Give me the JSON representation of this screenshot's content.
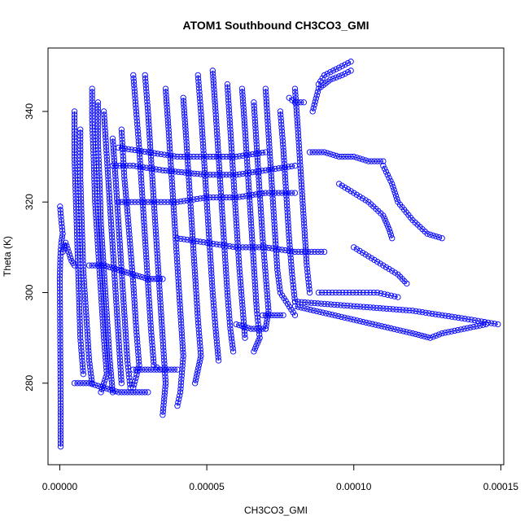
{
  "chart_data": {
    "type": "scatter",
    "title": "ATOM1 Southbound CH3CO3_GMI",
    "xlabel": "CH3CO3_GMI",
    "ylabel": "Theta (K)",
    "xlim": [
      -4e-06,
      0.000151
    ],
    "ylim": [
      262,
      354
    ],
    "x_ticks": [
      0,
      5e-05,
      0.0001,
      0.00015
    ],
    "x_tick_labels": [
      "0.00000",
      "0.00005",
      "0.00010",
      "0.00015"
    ],
    "y_ticks": [
      280,
      300,
      320,
      340
    ],
    "y_tick_labels": [
      "280",
      "300",
      "320",
      "340"
    ],
    "grid": false,
    "legend": "none",
    "series": [
      {
        "marker": "open-circle",
        "color": "#0000ff",
        "mode": "points+lines",
        "tracks": [
          [
            [
              3e-07,
              266
            ],
            [
              3e-07,
              275
            ],
            [
              2e-07,
              285
            ],
            [
              1e-07,
              295
            ],
            [
              0.0,
              303
            ],
            [
              2e-07,
              308
            ],
            [
              5e-07,
              311
            ],
            [
              1e-06,
              313
            ],
            [
              5e-07,
              316
            ],
            [
              1e-07,
              319
            ]
          ],
          [
            [
              1e-06,
              309
            ],
            [
              2e-06,
              311
            ],
            [
              3e-06,
              309
            ],
            [
              4e-06,
              307
            ],
            [
              5e-06,
              306
            ]
          ],
          [
            [
              5e-06,
              340
            ],
            [
              5e-06,
              330
            ],
            [
              5.5e-06,
              320
            ],
            [
              6e-06,
              310
            ],
            [
              6.5e-06,
              300
            ],
            [
              7e-06,
              290
            ],
            [
              8e-06,
              282
            ]
          ],
          [
            [
              7e-06,
              336
            ],
            [
              7e-06,
              325
            ],
            [
              7.5e-06,
              315
            ],
            [
              8e-06,
              305
            ],
            [
              9e-06,
              295
            ],
            [
              1e-05,
              285
            ],
            [
              1.1e-05,
              280
            ]
          ],
          [
            [
              1.1e-05,
              345
            ],
            [
              1.1e-05,
              338
            ],
            [
              1.15e-05,
              330
            ],
            [
              1.2e-05,
              320
            ],
            [
              1.3e-05,
              310
            ],
            [
              1.4e-05,
              300
            ],
            [
              1.5e-05,
              290
            ],
            [
              1.6e-05,
              282
            ],
            [
              1.4e-05,
              278
            ]
          ],
          [
            [
              1.3e-05,
              342
            ],
            [
              1.3e-05,
              333
            ],
            [
              1.35e-05,
              325
            ],
            [
              1.4e-05,
              315
            ],
            [
              1.5e-05,
              305
            ],
            [
              1.6e-05,
              295
            ],
            [
              1.7e-05,
              285
            ],
            [
              1.8e-05,
              278
            ]
          ],
          [
            [
              1.5e-05,
              340
            ],
            [
              1.6e-05,
              330
            ],
            [
              1.7e-05,
              320
            ],
            [
              1.8e-05,
              310
            ],
            [
              1.9e-05,
              300
            ],
            [
              2e-05,
              290
            ],
            [
              2.1e-05,
              280
            ]
          ],
          [
            [
              1.8e-05,
              334
            ],
            [
              1.9e-05,
              325
            ],
            [
              2e-05,
              315
            ],
            [
              2.1e-05,
              305
            ],
            [
              2.2e-05,
              295
            ],
            [
              2.3e-05,
              285
            ],
            [
              2.4e-05,
              279
            ]
          ],
          [
            [
              2.1e-05,
              336
            ],
            [
              2.2e-05,
              325
            ],
            [
              2.3e-05,
              318
            ],
            [
              2.4e-05,
              310
            ],
            [
              2.5e-05,
              302
            ],
            [
              2.6e-05,
              292
            ],
            [
              2.7e-05,
              284
            ],
            [
              2.5e-05,
              279
            ]
          ],
          [
            [
              2.5e-05,
              348
            ],
            [
              2.6e-05,
              340
            ],
            [
              2.7e-05,
              332
            ],
            [
              2.8e-05,
              322
            ],
            [
              2.9e-05,
              312
            ],
            [
              3e-05,
              302
            ],
            [
              3.1e-05,
              292
            ],
            [
              3.2e-05,
              284
            ],
            [
              3.4e-05,
              283
            ]
          ],
          [
            [
              2.9e-05,
              348
            ],
            [
              3e-05,
              340
            ],
            [
              3.1e-05,
              330
            ],
            [
              3.2e-05,
              320
            ],
            [
              3.3e-05,
              310
            ],
            [
              3.4e-05,
              300
            ],
            [
              3.5e-05,
              290
            ],
            [
              3.6e-05,
              280
            ],
            [
              3.5e-05,
              273
            ]
          ],
          [
            [
              3.6e-05,
              345
            ],
            [
              3.7e-05,
              336
            ],
            [
              3.8e-05,
              326
            ],
            [
              3.9e-05,
              316
            ],
            [
              4e-05,
              306
            ],
            [
              4.1e-05,
              296
            ],
            [
              4.2e-05,
              286
            ],
            [
              4.1e-05,
              278
            ],
            [
              4e-05,
              275
            ]
          ],
          [
            [
              4.2e-05,
              343
            ],
            [
              4.3e-05,
              334
            ],
            [
              4.4e-05,
              324
            ],
            [
              4.5e-05,
              314
            ],
            [
              4.6e-05,
              304
            ],
            [
              4.7e-05,
              294
            ],
            [
              4.8e-05,
              286
            ],
            [
              4.6e-05,
              280
            ]
          ],
          [
            [
              4.7e-05,
              348
            ],
            [
              4.8e-05,
              340
            ],
            [
              4.9e-05,
              330
            ],
            [
              5e-05,
              320
            ],
            [
              5.1e-05,
              310
            ],
            [
              5.2e-05,
              300
            ],
            [
              5.3e-05,
              292
            ],
            [
              5.4e-05,
              285
            ]
          ],
          [
            [
              5.2e-05,
              349
            ],
            [
              5.3e-05,
              340
            ],
            [
              5.4e-05,
              330
            ],
            [
              5.5e-05,
              320
            ],
            [
              5.6e-05,
              310
            ],
            [
              5.7e-05,
              300
            ],
            [
              5.8e-05,
              292
            ],
            [
              5.9e-05,
              287
            ]
          ],
          [
            [
              5.7e-05,
              346
            ],
            [
              5.8e-05,
              336
            ],
            [
              5.9e-05,
              326
            ],
            [
              6e-05,
              316
            ],
            [
              6.1e-05,
              306
            ],
            [
              6.2e-05,
              298
            ],
            [
              6.3e-05,
              290
            ]
          ],
          [
            [
              6.2e-05,
              345
            ],
            [
              6.3e-05,
              336
            ],
            [
              6.4e-05,
              326
            ],
            [
              6.5e-05,
              316
            ],
            [
              6.6e-05,
              306
            ],
            [
              6.7e-05,
              296
            ],
            [
              6.8e-05,
              290
            ],
            [
              6.6e-05,
              287
            ]
          ],
          [
            [
              6.6e-05,
              342
            ],
            [
              6.7e-05,
              332
            ],
            [
              6.8e-05,
              322
            ],
            [
              6.9e-05,
              312
            ],
            [
              7e-05,
              304
            ],
            [
              7.1e-05,
              296
            ],
            [
              7e-05,
              292
            ]
          ],
          [
            [
              7e-05,
              345
            ],
            [
              7.1e-05,
              335
            ],
            [
              7.2e-05,
              325
            ],
            [
              7.3e-05,
              315
            ],
            [
              7.4e-05,
              305
            ],
            [
              7.5e-05,
              300
            ],
            [
              8e-05,
              295
            ]
          ],
          [
            [
              7.5e-05,
              340
            ],
            [
              7.6e-05,
              332
            ],
            [
              7.7e-05,
              322
            ],
            [
              7.8e-05,
              312
            ],
            [
              7.9e-05,
              304
            ],
            [
              8e-05,
              298
            ]
          ],
          [
            [
              8e-05,
              345
            ],
            [
              8.1e-05,
              336
            ],
            [
              8.2e-05,
              326
            ],
            [
              8.3e-05,
              316
            ],
            [
              8.4e-05,
              306
            ],
            [
              8.5e-05,
              300
            ]
          ],
          [
            [
              7.8e-05,
              343
            ],
            [
              8e-05,
              342
            ],
            [
              8.3e-05,
              342
            ]
          ],
          [
            [
              8.8e-05,
              346
            ],
            [
              9e-05,
              348
            ],
            [
              9.3e-05,
              349
            ],
            [
              9.6e-05,
              350
            ],
            [
              9.9e-05,
              351
            ]
          ],
          [
            [
              8.6e-05,
              340
            ],
            [
              8.8e-05,
              345
            ],
            [
              9.2e-05,
              347
            ],
            [
              9.6e-05,
              348
            ],
            [
              9.9e-05,
              349
            ]
          ],
          [
            [
              8.5e-05,
              331
            ],
            [
              9e-05,
              331
            ],
            [
              9.5e-05,
              330
            ],
            [
              0.0001,
              330
            ],
            [
              0.000105,
              329
            ],
            [
              0.00011,
              329
            ]
          ],
          [
            [
              9.5e-05,
              324
            ],
            [
              0.0001,
              322
            ],
            [
              0.000105,
              320
            ],
            [
              0.00011,
              317
            ],
            [
              0.000112,
              314
            ],
            [
              0.000113,
              312
            ]
          ],
          [
            [
              0.00011,
              328
            ],
            [
              0.000113,
              324
            ],
            [
              0.000115,
              320
            ],
            [
              0.00012,
              316
            ],
            [
              0.000125,
              313
            ],
            [
              0.00013,
              312
            ]
          ],
          [
            [
              0.0001,
              310
            ],
            [
              0.000105,
              308
            ],
            [
              0.00011,
              306
            ],
            [
              0.000115,
              304
            ],
            [
              0.000118,
              302
            ]
          ],
          [
            [
              8.8e-05,
              300
            ],
            [
              9.5e-05,
              300
            ],
            [
              0.000102,
              300
            ],
            [
              0.000108,
              300
            ],
            [
              0.000115,
              299
            ]
          ],
          [
            [
              8e-05,
              298
            ],
            [
              0.0001,
              297
            ],
            [
              0.00012,
              296
            ],
            [
              0.00014,
              294
            ],
            [
              0.000149,
              293
            ]
          ],
          [
            [
              8e-05,
              297
            ],
            [
              0.0001,
              294
            ],
            [
              0.00012,
              291
            ],
            [
              0.000126,
              290
            ],
            [
              0.00013,
              291
            ],
            [
              0.000145,
              293
            ]
          ],
          [
            [
              6.9e-05,
              295
            ],
            [
              7.3e-05,
              295
            ],
            [
              7.6e-05,
              295
            ]
          ],
          [
            [
              6e-05,
              293
            ],
            [
              6.5e-05,
              292
            ],
            [
              7e-05,
              292
            ]
          ],
          [
            [
              1e-05,
              306
            ],
            [
              1.5e-05,
              306
            ],
            [
              2e-05,
              305
            ],
            [
              2.5e-05,
              304
            ],
            [
              3e-05,
              303
            ],
            [
              3.5e-05,
              303
            ]
          ],
          [
            [
              2e-05,
              320
            ],
            [
              3e-05,
              320
            ],
            [
              4e-05,
              320
            ],
            [
              5e-05,
              321
            ],
            [
              6e-05,
              321
            ],
            [
              7e-05,
              322
            ],
            [
              8e-05,
              322
            ]
          ],
          [
            [
              1.8e-05,
              328
            ],
            [
              2.5e-05,
              328
            ],
            [
              3.5e-05,
              327
            ],
            [
              5e-05,
              326
            ],
            [
              6e-05,
              326
            ],
            [
              7e-05,
              327
            ],
            [
              8e-05,
              328
            ]
          ],
          [
            [
              2e-05,
              332
            ],
            [
              3e-05,
              331
            ],
            [
              4e-05,
              330
            ],
            [
              5e-05,
              330
            ],
            [
              6e-05,
              330
            ],
            [
              7e-05,
              331
            ]
          ],
          [
            [
              4e-05,
              312
            ],
            [
              5e-05,
              311
            ],
            [
              6e-05,
              310
            ],
            [
              7e-05,
              310
            ],
            [
              8e-05,
              309
            ],
            [
              9e-05,
              309
            ]
          ],
          [
            [
              5e-06,
              280
            ],
            [
              1e-05,
              280
            ],
            [
              1.5e-05,
              279
            ],
            [
              2e-05,
              278
            ],
            [
              2.5e-05,
              278
            ],
            [
              3e-05,
              278
            ]
          ],
          [
            [
              2.5e-05,
              283
            ],
            [
              3e-05,
              283
            ],
            [
              3.5e-05,
              283
            ],
            [
              4e-05,
              283
            ]
          ]
        ]
      }
    ]
  }
}
